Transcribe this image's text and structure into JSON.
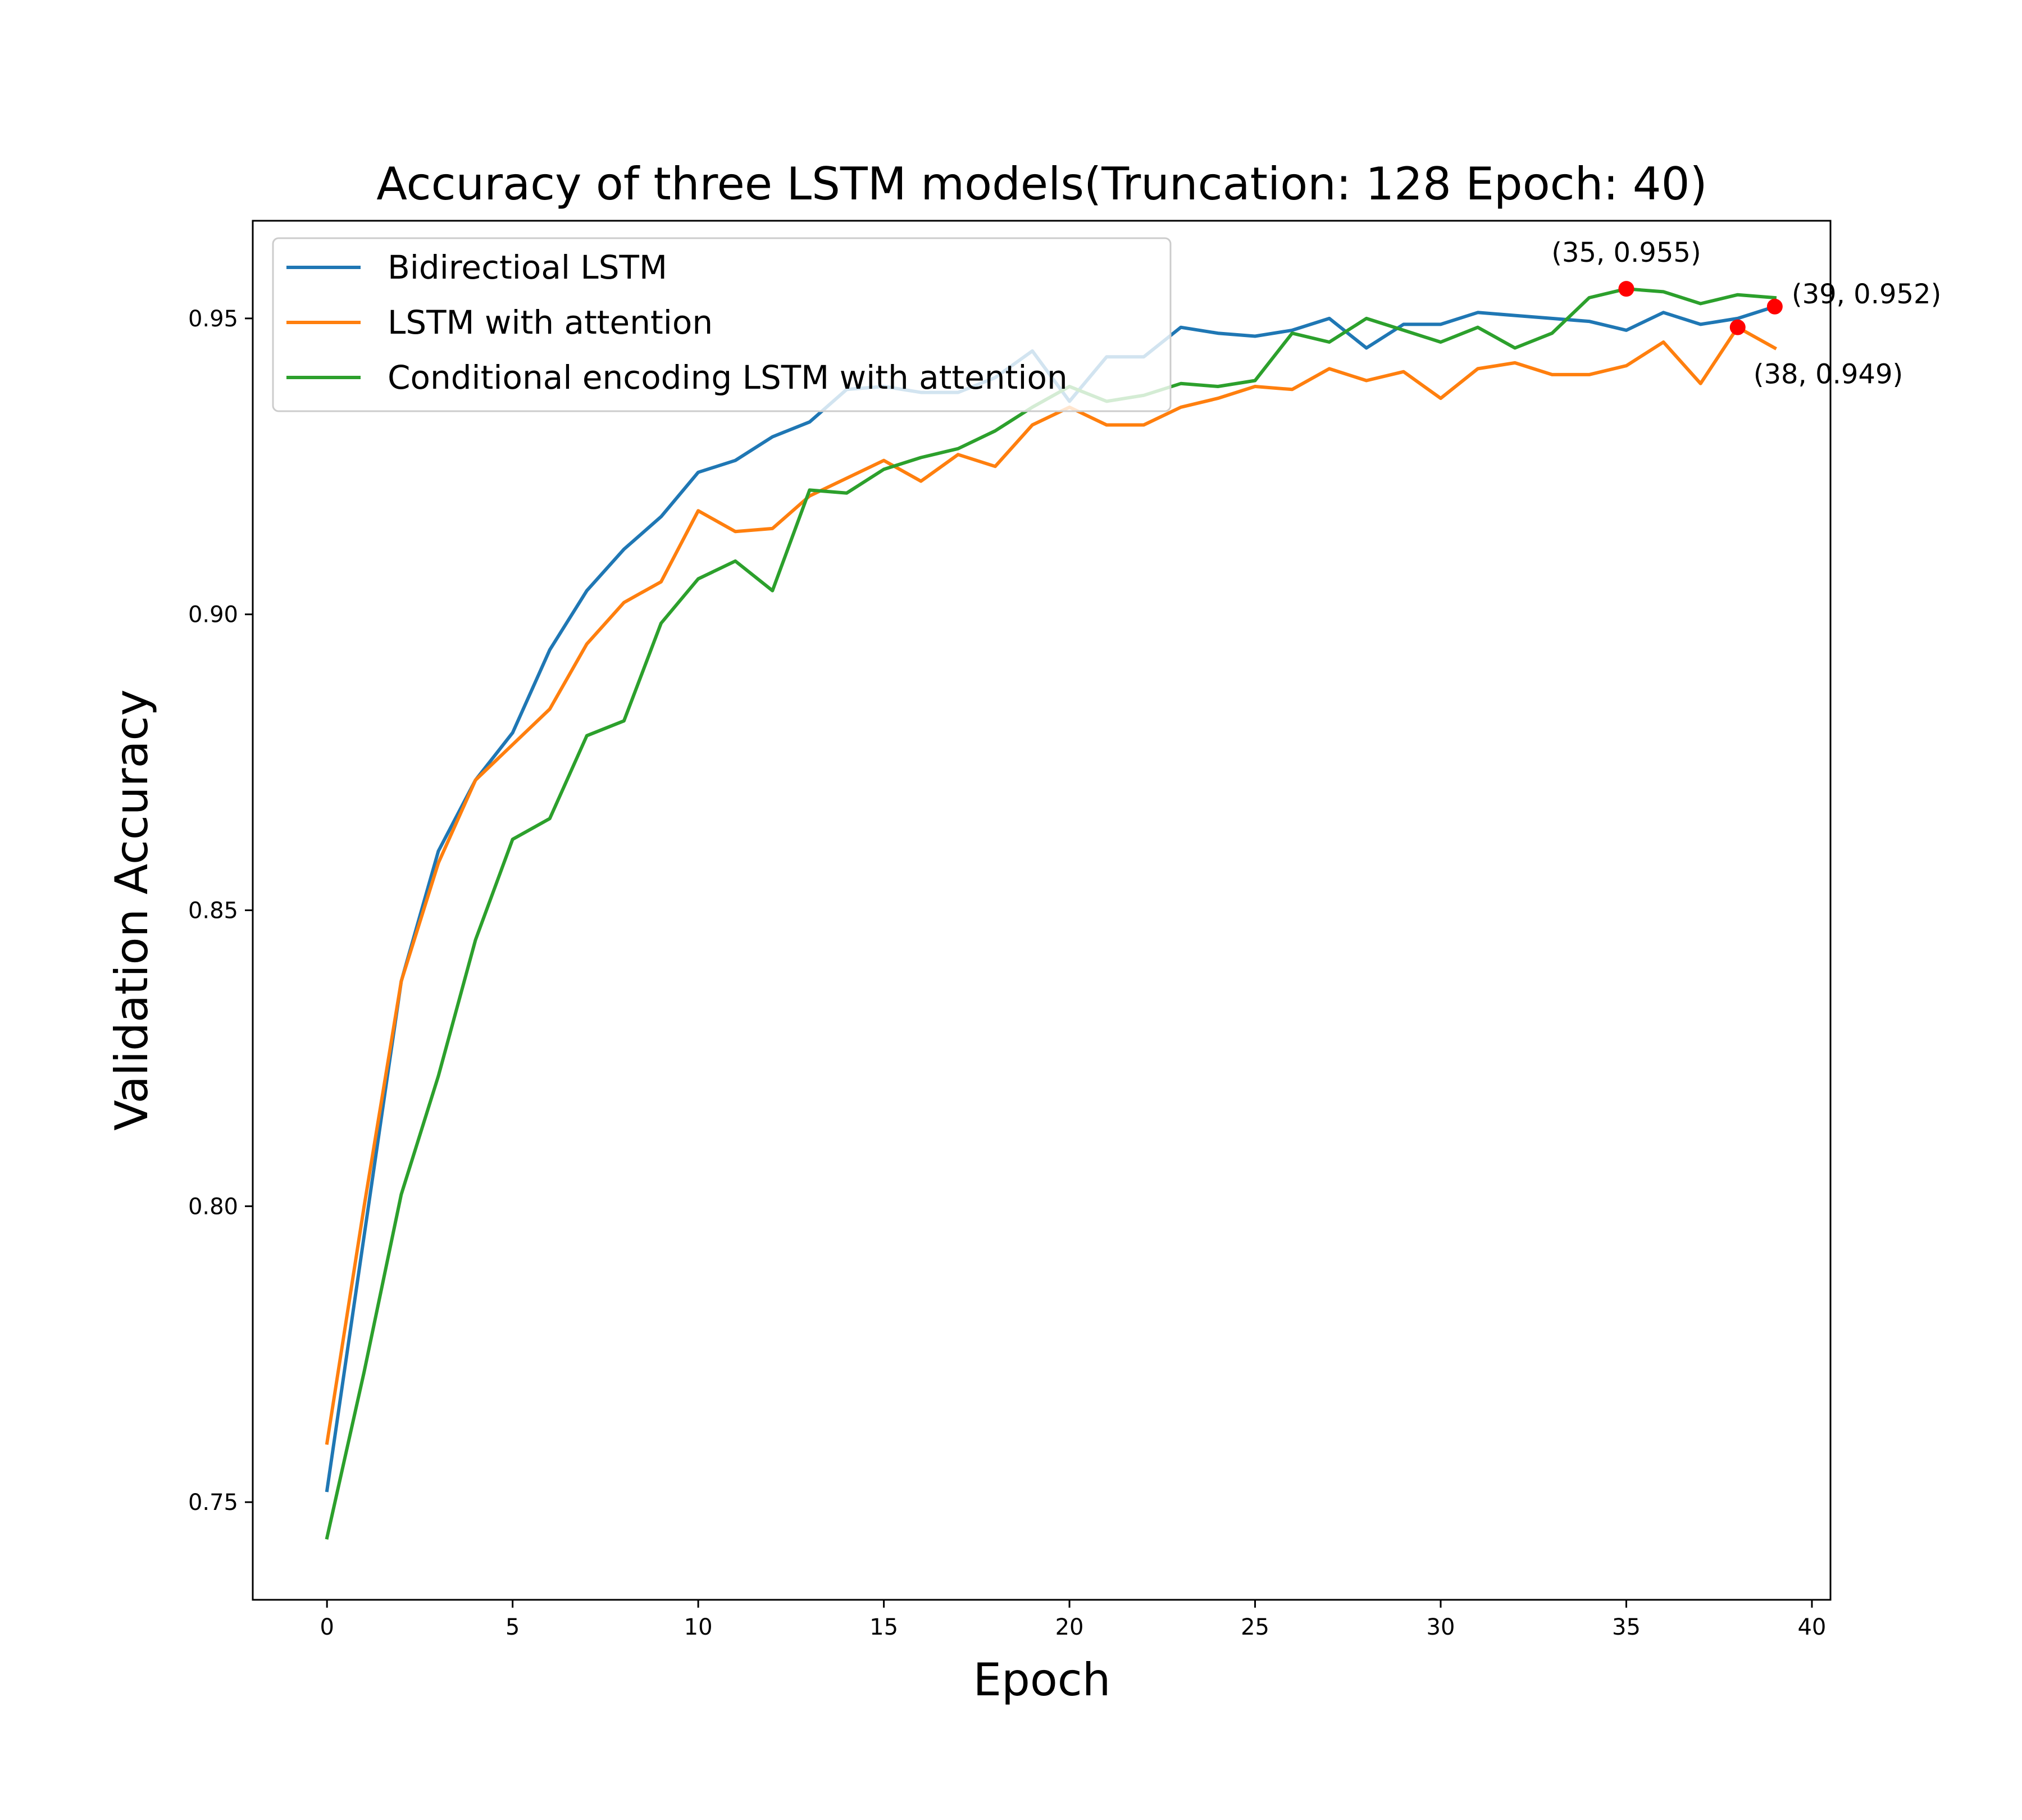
{
  "chart_data": {
    "type": "line",
    "title": "Accuracy of three LSTM models(Truncation: 128 Epoch: 40)",
    "xlabel": "Epoch",
    "ylabel": "Validation Accuracy",
    "xlim": [
      -2,
      40.5
    ],
    "ylim": [
      0.7335,
      0.9665
    ],
    "xticks": [
      0,
      5,
      10,
      15,
      20,
      25,
      30,
      35,
      40
    ],
    "yticks": [
      0.75,
      0.8,
      0.85,
      0.9,
      0.95
    ],
    "ytick_labels": [
      "0.75",
      "0.80",
      "0.85",
      "0.90",
      "0.95"
    ],
    "grid": false,
    "legend_position": "top-left",
    "colors": {
      "bidirectional": "#1f77b4",
      "attention": "#ff7f0e",
      "conditional": "#2ca02c",
      "marker": "#ff0000"
    },
    "x": [
      0,
      1,
      2,
      3,
      4,
      5,
      6,
      7,
      8,
      9,
      10,
      11,
      12,
      13,
      14,
      15,
      16,
      17,
      18,
      19,
      20,
      21,
      22,
      23,
      24,
      25,
      26,
      27,
      28,
      29,
      30,
      31,
      32,
      33,
      34,
      35,
      36,
      37,
      38,
      39
    ],
    "series": [
      {
        "name": "Bidirectioal LSTM",
        "color": "#1f77b4",
        "values": [
          0.752,
          0.795,
          0.838,
          0.86,
          0.872,
          0.88,
          0.894,
          0.904,
          0.911,
          0.9165,
          0.924,
          0.926,
          0.93,
          0.9325,
          0.938,
          0.9385,
          0.9375,
          0.9375,
          0.94,
          0.9445,
          0.936,
          0.9435,
          0.9435,
          0.9485,
          0.9475,
          0.947,
          0.948,
          0.95,
          0.945,
          0.949,
          0.949,
          0.951,
          0.9505,
          0.95,
          0.9495,
          0.948,
          0.951,
          0.949,
          0.95,
          0.952
        ]
      },
      {
        "name": "LSTM with attention",
        "color": "#ff7f0e",
        "values": [
          0.76,
          0.8,
          0.838,
          0.858,
          0.872,
          0.878,
          0.884,
          0.895,
          0.902,
          0.9055,
          0.9175,
          0.914,
          0.9145,
          0.92,
          0.923,
          0.926,
          0.9225,
          0.927,
          0.925,
          0.932,
          0.935,
          0.932,
          0.932,
          0.935,
          0.9365,
          0.9385,
          0.938,
          0.9415,
          0.9395,
          0.941,
          0.9365,
          0.9415,
          0.9425,
          0.9405,
          0.9405,
          0.942,
          0.946,
          0.939,
          0.9485,
          0.945
        ]
      },
      {
        "name": "Conditional encoding LSTM with attention",
        "color": "#2ca02c",
        "values": [
          0.744,
          0.772,
          0.802,
          0.822,
          0.845,
          0.862,
          0.8655,
          0.8795,
          0.882,
          0.8985,
          0.906,
          0.909,
          0.904,
          0.921,
          0.9205,
          0.9245,
          0.9265,
          0.928,
          0.931,
          0.935,
          0.9385,
          0.936,
          0.937,
          0.939,
          0.9385,
          0.9395,
          0.9475,
          0.946,
          0.95,
          0.948,
          0.946,
          0.9485,
          0.945,
          0.9475,
          0.9535,
          0.955,
          0.9545,
          0.9525,
          0.954,
          0.9535
        ]
      }
    ],
    "annotations": [
      {
        "x": 35,
        "y": 0.955,
        "label": "(35, 0.955)"
      },
      {
        "x": 39,
        "y": 0.952,
        "label": "(39, 0.952)"
      },
      {
        "x": 38,
        "y": 0.9485,
        "label": "(38, 0.949)"
      }
    ]
  }
}
